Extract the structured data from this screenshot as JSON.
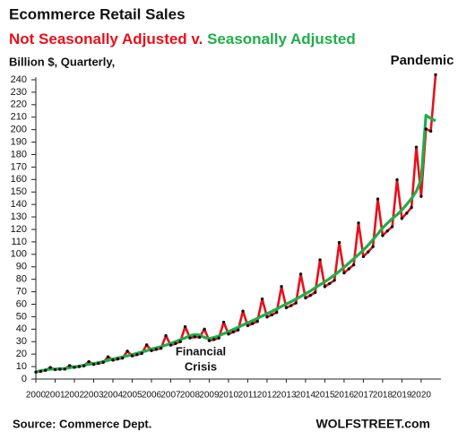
{
  "chart_data": {
    "type": "line",
    "title": "Ecommerce Retail Sales",
    "legend_separator": "v.",
    "y_axis_label": "Billion $, Quarterly,",
    "annotations": [
      {
        "text": "Pandemic",
        "color": "#e8101a"
      },
      {
        "text": "Financial",
        "color": "#e8101a"
      },
      {
        "text": "Crisis",
        "color": "#e8101a"
      }
    ],
    "source": "Source: Commerce Dept.",
    "credit": "WOLFSTREET.com",
    "categories": [
      "2000",
      null,
      null,
      null,
      "2001",
      null,
      null,
      null,
      "2002",
      null,
      null,
      null,
      "2003",
      null,
      null,
      null,
      "2004",
      null,
      null,
      null,
      "2005",
      null,
      null,
      null,
      "2006",
      null,
      null,
      null,
      "2007",
      null,
      null,
      null,
      "2008",
      null,
      null,
      null,
      "2009",
      null,
      null,
      null,
      "2010",
      null,
      null,
      null,
      "2011",
      null,
      null,
      null,
      "2012",
      null,
      null,
      null,
      "2013",
      null,
      null,
      null,
      "2014",
      null,
      null,
      null,
      "2015",
      null,
      null,
      null,
      "2016",
      null,
      null,
      null,
      "2017",
      null,
      null,
      null,
      "2018",
      null,
      null,
      null,
      "2019",
      null,
      null,
      null,
      "2020",
      null,
      null,
      null
    ],
    "series": [
      {
        "name": "Not Seasonally Adjusted",
        "color": "#e8101a",
        "marker_color": "#111111",
        "values": [
          5.6,
          6.2,
          7.0,
          9.3,
          7.6,
          7.9,
          8.0,
          10.8,
          9.4,
          10.0,
          10.6,
          14.0,
          11.8,
          12.6,
          13.4,
          17.8,
          15.2,
          16.1,
          16.8,
          22.4,
          18.6,
          19.6,
          20.6,
          27.4,
          22.8,
          23.8,
          24.7,
          34.8,
          27.2,
          28.5,
          30.0,
          42.0,
          33.0,
          33.8,
          33.5,
          40.0,
          30.8,
          31.7,
          32.9,
          45.6,
          36.1,
          37.8,
          39.3,
          54.5,
          42.8,
          44.5,
          46.2,
          64.2,
          49.8,
          51.5,
          53.4,
          74.2,
          57.2,
          58.9,
          61.0,
          84.2,
          65.0,
          67.1,
          69.5,
          95.6,
          74.1,
          76.6,
          79.2,
          109.5,
          85.1,
          88.4,
          91.6,
          125.2,
          98.2,
          102.0,
          106.2,
          144.4,
          115.1,
          118.8,
          122.2,
          159.8,
          128.8,
          133.0,
          137.6,
          186.0,
          146.5,
          200.5,
          198.8,
          244.0
        ]
      },
      {
        "name": "Seasonally Adjusted",
        "color": "#1fae4b",
        "values": [
          5.8,
          6.6,
          7.3,
          7.9,
          8.0,
          8.3,
          8.4,
          9.0,
          9.8,
          10.4,
          11.1,
          11.8,
          12.4,
          13.2,
          14.1,
          15.0,
          16.0,
          16.9,
          17.7,
          18.6,
          19.6,
          20.6,
          21.7,
          22.7,
          24.0,
          25.0,
          26.0,
          27.2,
          28.6,
          30.0,
          31.6,
          33.0,
          34.8,
          35.6,
          35.3,
          33.4,
          32.4,
          33.4,
          34.6,
          36.4,
          38.0,
          39.8,
          41.4,
          43.4,
          45.0,
          46.8,
          48.6,
          50.6,
          52.4,
          54.2,
          56.2,
          58.2,
          60.2,
          62.0,
          64.2,
          66.2,
          68.4,
          70.6,
          73.2,
          75.6,
          78.0,
          80.6,
          83.4,
          86.4,
          89.6,
          93.0,
          96.4,
          99.8,
          103.4,
          107.4,
          111.8,
          116.4,
          121.2,
          125.0,
          128.6,
          131.8,
          135.6,
          140.0,
          144.8,
          150.6,
          160.0,
          211.5,
          209.0,
          207.0
        ]
      }
    ],
    "ylim": [
      0,
      242
    ],
    "yticks": [
      0,
      10,
      20,
      30,
      40,
      50,
      60,
      70,
      80,
      90,
      100,
      110,
      120,
      130,
      140,
      150,
      160,
      170,
      180,
      190,
      200,
      210,
      220,
      230,
      240
    ],
    "grid": false
  }
}
